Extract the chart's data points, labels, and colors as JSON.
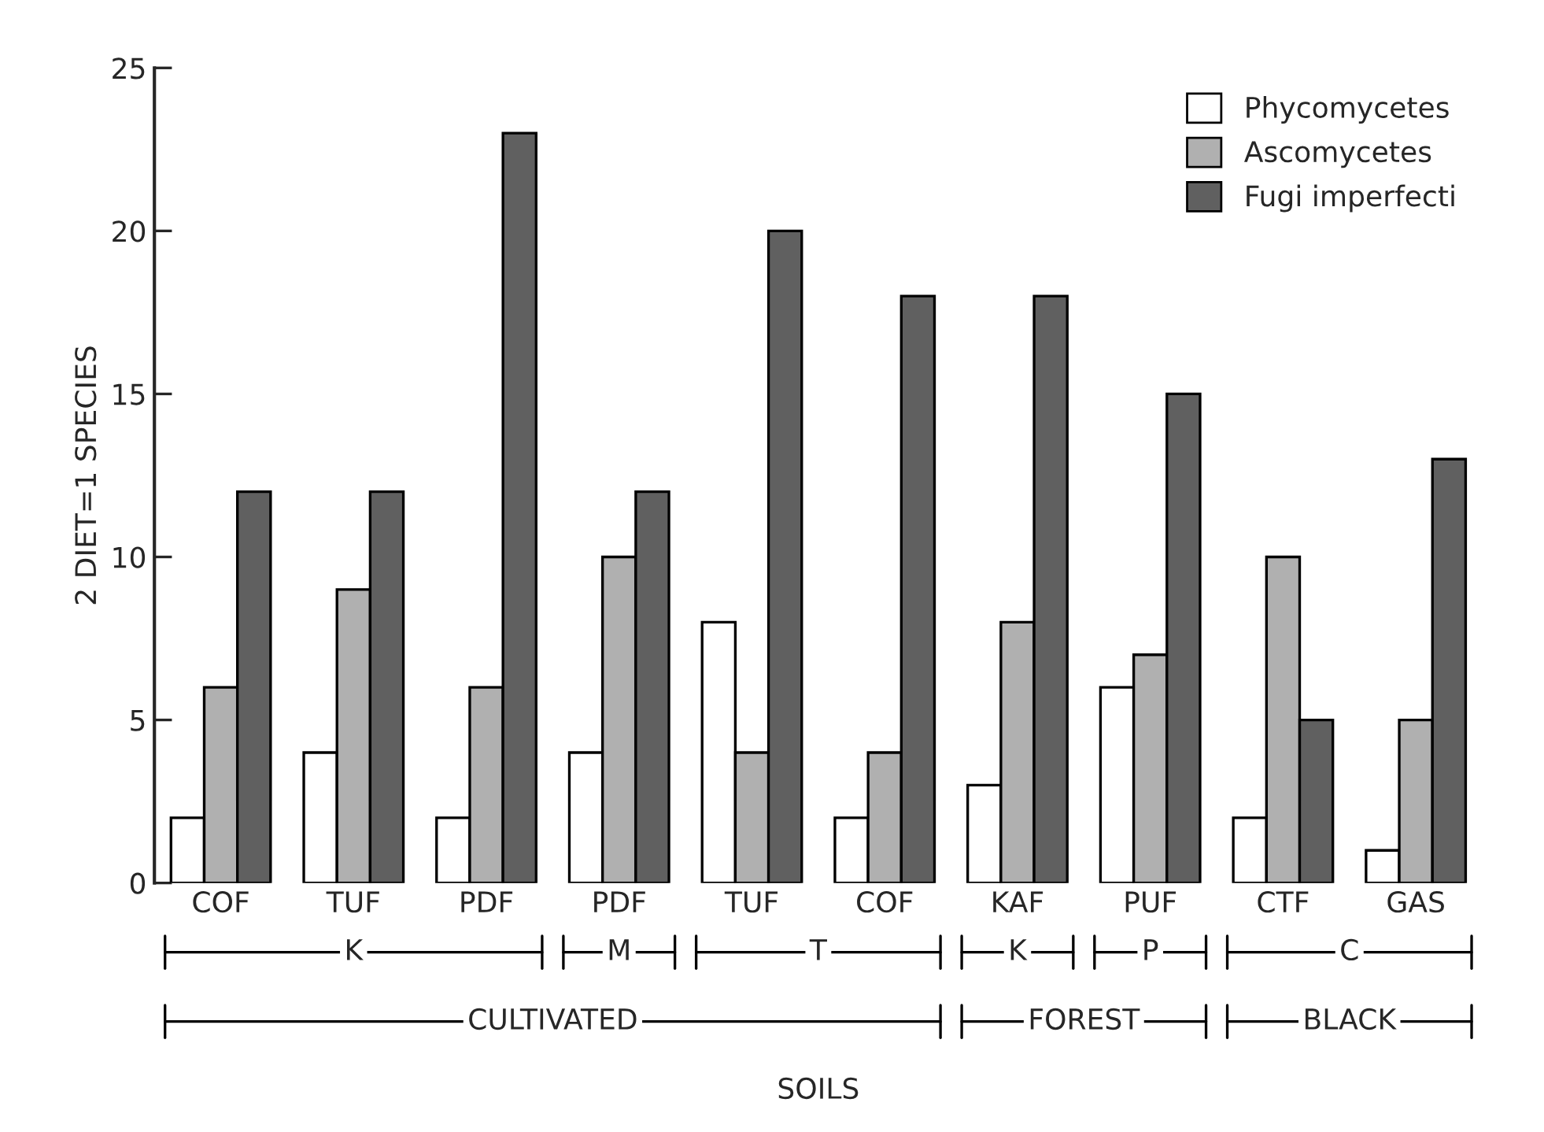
{
  "chart_data": {
    "type": "bar",
    "ylabel": "2 DIET=1 SPECIES",
    "categories": [
      "COF",
      "TUF",
      "PDF",
      "PDF",
      "TUF",
      "COF",
      "KAF",
      "PUF",
      "CTF",
      "GAS"
    ],
    "series": [
      {
        "name": "Phycomycetes",
        "color": "#ffffff",
        "values": [
          2,
          4,
          2,
          4,
          8,
          2,
          3,
          6,
          2,
          1
        ]
      },
      {
        "name": "Ascomycetes",
        "color": "#b0b0b0",
        "values": [
          6,
          9,
          6,
          10,
          4,
          4,
          8,
          7,
          10,
          5
        ]
      },
      {
        "name": "Fugi imperfecti",
        "color": "#606060",
        "values": [
          12,
          12,
          23,
          12,
          20,
          18,
          18,
          15,
          5,
          13
        ]
      }
    ],
    "ylim": [
      0,
      25
    ],
    "yticks": [
      0,
      5,
      10,
      15,
      20,
      25
    ],
    "grid": false,
    "legend": "top right",
    "annotations": [
      "K",
      "M",
      "T",
      "K",
      "P",
      "C",
      "CULTIVATED",
      "FOREST",
      "BLACK",
      "SOILS"
    ]
  }
}
